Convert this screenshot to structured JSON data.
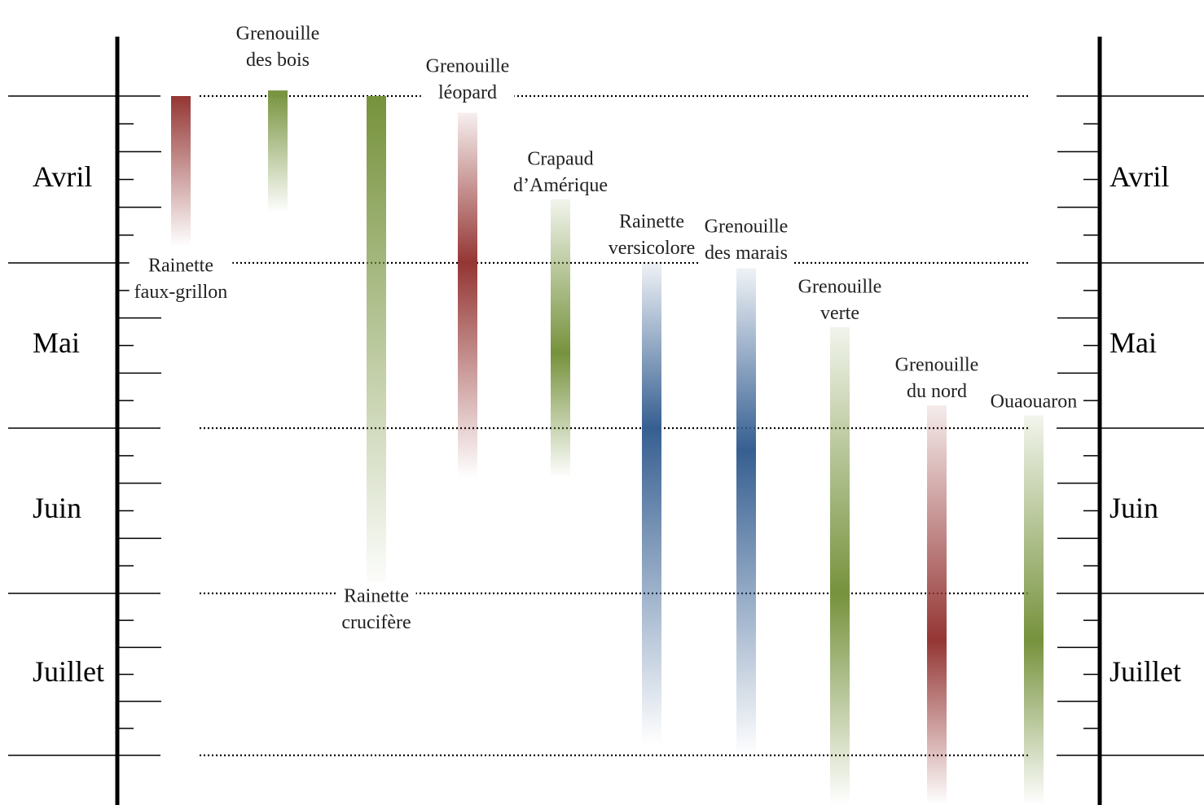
{
  "chart_data": {
    "type": "timeline",
    "months": [
      "Avril",
      "Mai",
      "Juin",
      "Juillet"
    ],
    "colors": {
      "red": "#943634",
      "green": "#76923C",
      "blue": "#365F91"
    },
    "series": [
      {
        "label_lines": [
          "Rainette",
          "faux-grillon"
        ],
        "color": "red",
        "start": "Apr 1",
        "end": "Apr 28",
        "peak": "Apr 1"
      },
      {
        "label_lines": [
          "Grenouille",
          "des bois"
        ],
        "color": "green",
        "start": "Mar 31",
        "end": "Apr 22",
        "peak": "Mar 31"
      },
      {
        "label_lines": [
          "Rainette",
          "crucifère"
        ],
        "color": "green",
        "start": "Apr 1",
        "end": "Jul 1",
        "peak": "Apr 1"
      },
      {
        "label_lines": [
          "Grenouille",
          "léopard"
        ],
        "color": "red",
        "start": "Apr 4",
        "end": "Jun 10",
        "peak": "May 1"
      },
      {
        "label_lines": [
          "Crapaud",
          "d’Amérique"
        ],
        "color": "green",
        "start": "Apr 19",
        "end": "Jun 10",
        "peak": "May 18"
      },
      {
        "label_lines": [
          "Rainette",
          "versicolore"
        ],
        "color": "blue",
        "start": "May 1",
        "end": "Jul 30",
        "peak": "Jun 1"
      },
      {
        "label_lines": [
          "Grenouille",
          "des marais"
        ],
        "color": "blue",
        "start": "May 2",
        "end": "Aug 1",
        "peak": "Jun 5"
      },
      {
        "label_lines": [
          "Grenouille",
          "verte"
        ],
        "color": "green",
        "start": "May 12",
        "end": "Aug 15",
        "peak": "Jul 1"
      },
      {
        "label_lines": [
          "Grenouille",
          "du nord"
        ],
        "color": "red",
        "start": "May 27",
        "end": "Aug 15",
        "peak": "Jul 10"
      },
      {
        "label_lines": [
          "Ouaouaron"
        ],
        "color": "green",
        "start": "May 29",
        "end": "Aug 15",
        "peak": "Jul 10"
      }
    ]
  }
}
